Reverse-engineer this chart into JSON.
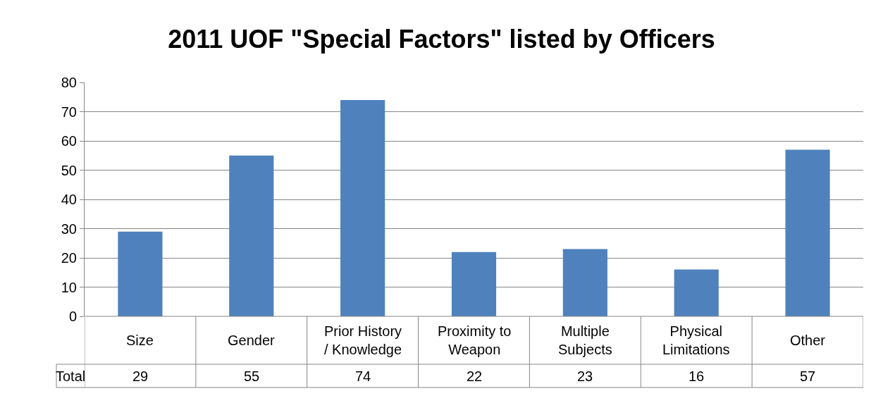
{
  "chart_data": {
    "type": "bar",
    "title": "2011 UOF \"Special Factors\" listed by Officers",
    "categories": [
      "Size",
      "Gender",
      "Prior History / Knowledge",
      "Proximity to Weapon",
      "Multiple Subjects",
      "Physical Limitations",
      "Other"
    ],
    "series": [
      {
        "name": "Total",
        "color": "#4f81bd",
        "values": [
          29,
          55,
          74,
          22,
          23,
          16,
          57
        ]
      }
    ],
    "ylim": [
      0,
      80
    ],
    "yticks": [
      0,
      10,
      20,
      30,
      40,
      50,
      60,
      70,
      80
    ],
    "grid": "y",
    "data_labels": true,
    "legend": false
  }
}
